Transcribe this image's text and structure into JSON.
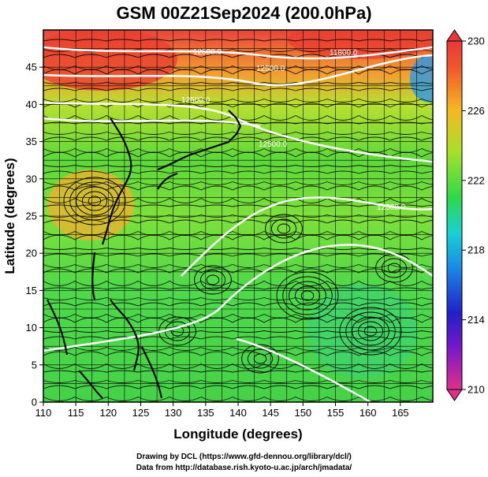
{
  "title": "GSM 00Z21Sep2024 (200.0hPa)",
  "xlabel": "Longitude (degrees)",
  "ylabel": "Latitude  (degrees)",
  "xticks": [
    "110",
    "115",
    "120",
    "125",
    "130",
    "135",
    "140",
    "145",
    "150",
    "155",
    "160",
    "165"
  ],
  "yticks": [
    "0",
    "5",
    "10",
    "15",
    "20",
    "25",
    "30",
    "35",
    "40",
    "45"
  ],
  "colorbar": {
    "ticks": [
      "230",
      "226",
      "222",
      "218",
      "214",
      "210"
    ],
    "colors": [
      "#e0308a",
      "#3a0fc0",
      "#1a6be6",
      "#18d2d2",
      "#2ed84a",
      "#a6e02a",
      "#f5b822",
      "#f05a2a",
      "#e83838"
    ]
  },
  "contour_labels": [
    "12500.0",
    "12500.0",
    "12500.0",
    "11800.0",
    "12500.0",
    "12500.0"
  ],
  "credit_line1": "Drawing by DCL (https://www.gfd-dennou.org/library/dcl/)",
  "credit_line2": "Data from http://database.rish.kyoto-u.ac.jp/arch/jmadata/",
  "chart_data": {
    "type": "heatmap",
    "title": "GSM 00Z21Sep2024 (200.0hPa)",
    "xlabel": "Longitude (degrees)",
    "ylabel": "Latitude  (degrees)",
    "xlim": [
      110,
      170
    ],
    "ylim": [
      0,
      50
    ],
    "colorbar_range": [
      210,
      230
    ],
    "grid": true,
    "overlays": [
      "streamlines",
      "geopotential height contours"
    ]
  }
}
